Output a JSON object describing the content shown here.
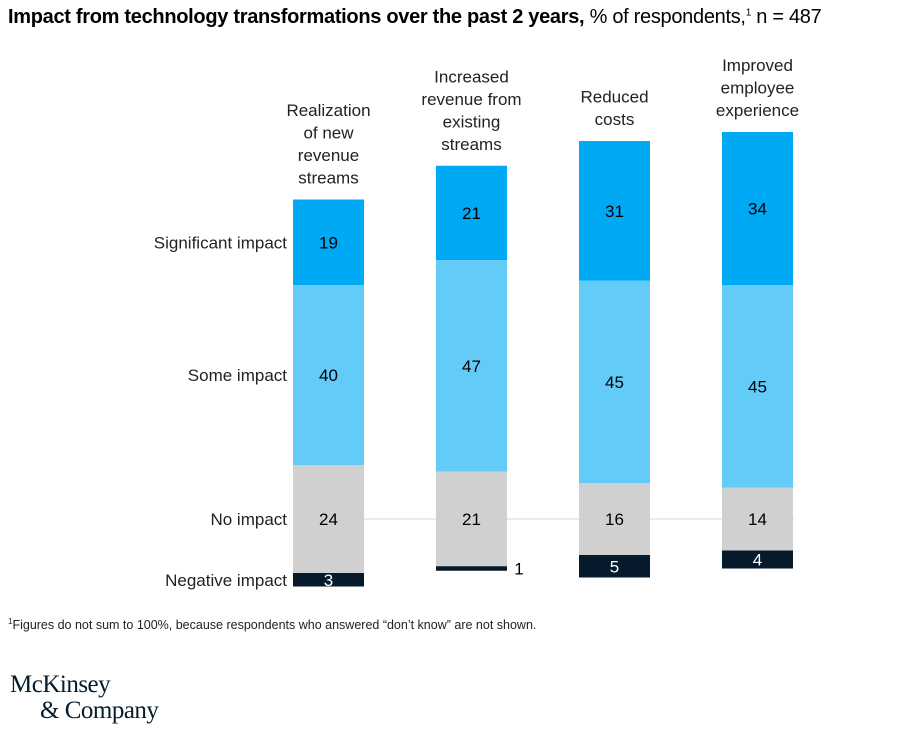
{
  "title": {
    "bold": "Impact from technology transformations over the past 2 years,",
    "rest": "% of respondents,",
    "footnote_marker": "1",
    "n": "n = 487"
  },
  "footnote": {
    "marker": "1",
    "text": "Figures do not sum to 100%, because respondents who answered “don’t know” are not shown."
  },
  "logo": {
    "line1": "McKinsey",
    "line2": "& Company"
  },
  "chart_data": {
    "type": "bar",
    "stacked": true,
    "categories": [
      [
        "Realization",
        "of new",
        "revenue",
        "streams"
      ],
      [
        "Increased",
        "revenue from",
        "existing",
        "streams"
      ],
      [
        "Reduced",
        "costs"
      ],
      [
        "Improved",
        "employee",
        "experience"
      ]
    ],
    "series": [
      {
        "name": "Significant impact",
        "color": "#00a9f4",
        "values": [
          19,
          21,
          31,
          34
        ]
      },
      {
        "name": "Some impact",
        "color": "#63cbf8",
        "values": [
          40,
          47,
          45,
          45
        ]
      },
      {
        "name": "No impact",
        "color": "#d0d0d0",
        "values": [
          24,
          21,
          16,
          14
        ]
      },
      {
        "name": "Negative impact",
        "color": "#061a2c",
        "values": [
          3,
          1,
          5,
          4
        ]
      }
    ],
    "baseline": "No impact"
  }
}
